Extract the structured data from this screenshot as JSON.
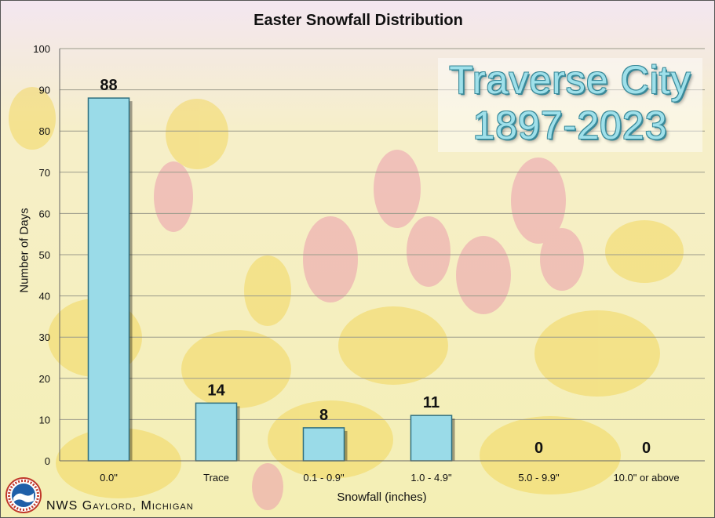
{
  "chart_data": {
    "type": "bar",
    "title": "Easter Snowfall Distribution",
    "xlabel": "Snowfall (inches)",
    "ylabel": "Number of Days",
    "categories": [
      "0.0\"",
      "Trace",
      "0.1 - 0.9\"",
      "1.0 - 4.9\"",
      "5.0 - 9.9\"",
      "10.0\" or above"
    ],
    "values": [
      88,
      14,
      8,
      11,
      0,
      0
    ],
    "ylim": [
      0,
      100
    ],
    "yticks": [
      0,
      10,
      20,
      30,
      40,
      50,
      60,
      70,
      80,
      90,
      100
    ],
    "grid": true,
    "bar_color": "#9adbe8",
    "bar_edge_color": "#2f6f7f"
  },
  "overlay": {
    "line1": "Traverse City",
    "line2": "1897-2023"
  },
  "footer": {
    "credit": "NWS Gaylord, Michigan"
  },
  "logo": {
    "icon": "nws-logo-icon"
  }
}
